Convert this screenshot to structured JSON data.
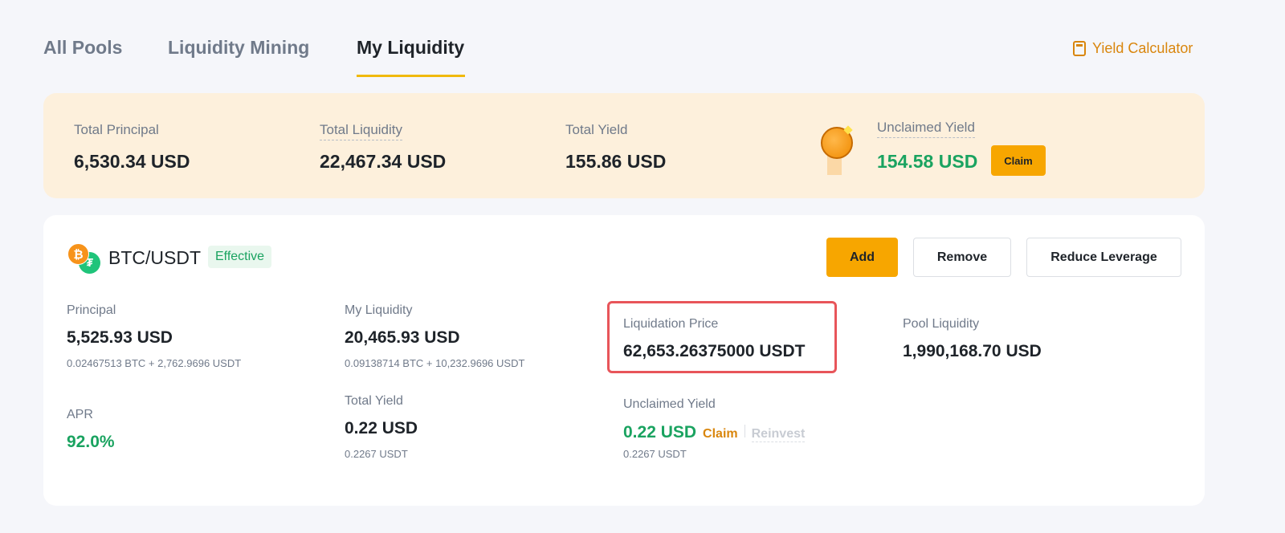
{
  "tabs": [
    {
      "label": "All Pools",
      "active": false
    },
    {
      "label": "Liquidity Mining",
      "active": false
    },
    {
      "label": "My Liquidity",
      "active": true
    }
  ],
  "yield_calculator": {
    "label": "Yield Calculator",
    "icon": "calculator-icon"
  },
  "summary": {
    "total_principal": {
      "label": "Total Principal",
      "value": "6,530.34 USD"
    },
    "total_liquidity": {
      "label": "Total Liquidity",
      "value": "22,467.34 USD"
    },
    "total_yield": {
      "label": "Total Yield",
      "value": "155.86 USD"
    },
    "unclaimed_yield": {
      "label": "Unclaimed Yield",
      "value": "154.58 USD",
      "claim": "Claim"
    }
  },
  "pool": {
    "pair": "BTC/USDT",
    "status": "Effective",
    "actions": {
      "add": "Add",
      "remove": "Remove",
      "reduce": "Reduce Leverage"
    },
    "principal": {
      "label": "Principal",
      "value": "5,525.93 USD",
      "sub": "0.02467513 BTC + 2,762.9696 USDT"
    },
    "my_liquidity": {
      "label": "My Liquidity",
      "value": "20,465.93 USD",
      "sub": "0.09138714 BTC + 10,232.9696 USDT"
    },
    "liquidation_price": {
      "label": "Liquidation Price",
      "value": "62,653.26375000 USDT"
    },
    "pool_liquidity": {
      "label": "Pool Liquidity",
      "value": "1,990,168.70 USD"
    },
    "apr": {
      "label": "APR",
      "value": "92.0%"
    },
    "total_yield": {
      "label": "Total Yield",
      "value": "0.22 USD",
      "sub": "0.2267 USDT"
    },
    "unclaimed_yield": {
      "label": "Unclaimed Yield",
      "value": "0.22 USD",
      "sub": "0.2267 USDT",
      "claim": "Claim",
      "reinvest": "Reinvest"
    }
  },
  "colors": {
    "accent": "#f7a600",
    "green": "#1aa360",
    "highlight": "#e8555a",
    "link": "#d9860d"
  }
}
